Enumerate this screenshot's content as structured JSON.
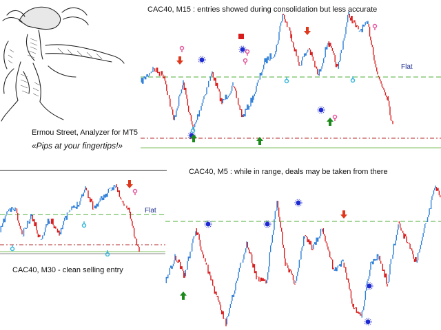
{
  "logo": {
    "title": "Ermou Street, Analyzer for MT5",
    "tagline": "«Pips at your fingertips!»"
  },
  "charts": {
    "m15": {
      "caption": "CAC40, M15 : entries showed during consolidation but less accurate",
      "flat_label": "Flat"
    },
    "m30": {
      "caption": "CAC40, M30 - clean selling entry",
      "flat_label": "Flat"
    },
    "m5": {
      "caption": "CAC40, M5 : while in range, deals may be taken from there"
    }
  },
  "colors": {
    "bull": "#2e7fd8",
    "bear": "#d81c1c",
    "flat_line": "#4cae34",
    "level_line": "#b52a2a",
    "pivot_dot": "#1f2bd1",
    "buy_arrow": "#1b8a1b",
    "sell_arrow": "#e0381c",
    "pink_marker": "#e4559c",
    "cyan_marker": "#37b7d9"
  },
  "icons": [
    "hermes-figure-icon",
    "buy-arrow-icon",
    "sell-arrow-icon",
    "pivot-dot-icon",
    "pink-signal-icon",
    "cyan-signal-icon",
    "stop-square-icon"
  ]
}
